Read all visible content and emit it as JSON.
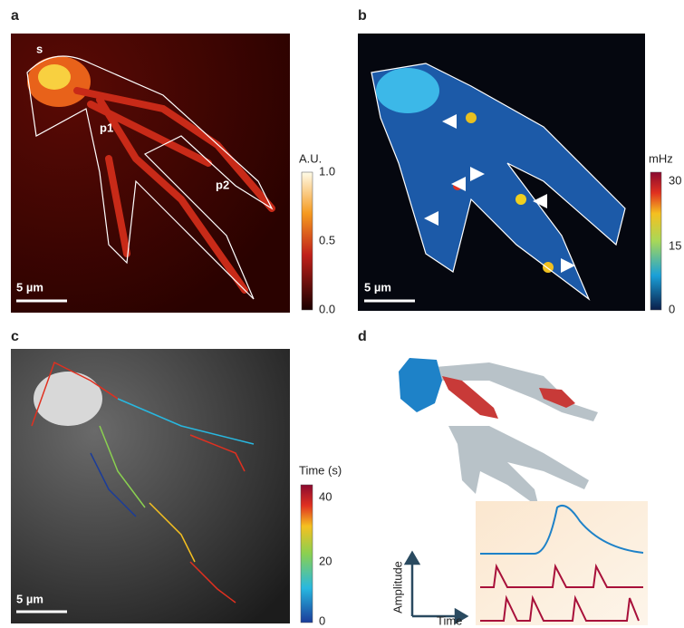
{
  "panels": [
    {
      "label": "a",
      "annotations": [
        "s",
        "p1",
        "p2"
      ],
      "scale_bar": "5 µm",
      "colorbar": {
        "title": "A.U.",
        "ticks": [
          "1.0",
          "0.5",
          "0.0"
        ]
      }
    },
    {
      "label": "b",
      "scale_bar": "5 µm",
      "colorbar": {
        "title": "mHz",
        "ticks": [
          "30",
          "15",
          "0"
        ]
      }
    },
    {
      "label": "c",
      "scale_bar": "5 µm",
      "colorbar": {
        "title": "Time (s)",
        "ticks": [
          "40",
          "20",
          "0"
        ]
      }
    },
    {
      "label": "d",
      "axes": {
        "y_label": "Amplitude",
        "x_label": "Time"
      }
    }
  ]
}
